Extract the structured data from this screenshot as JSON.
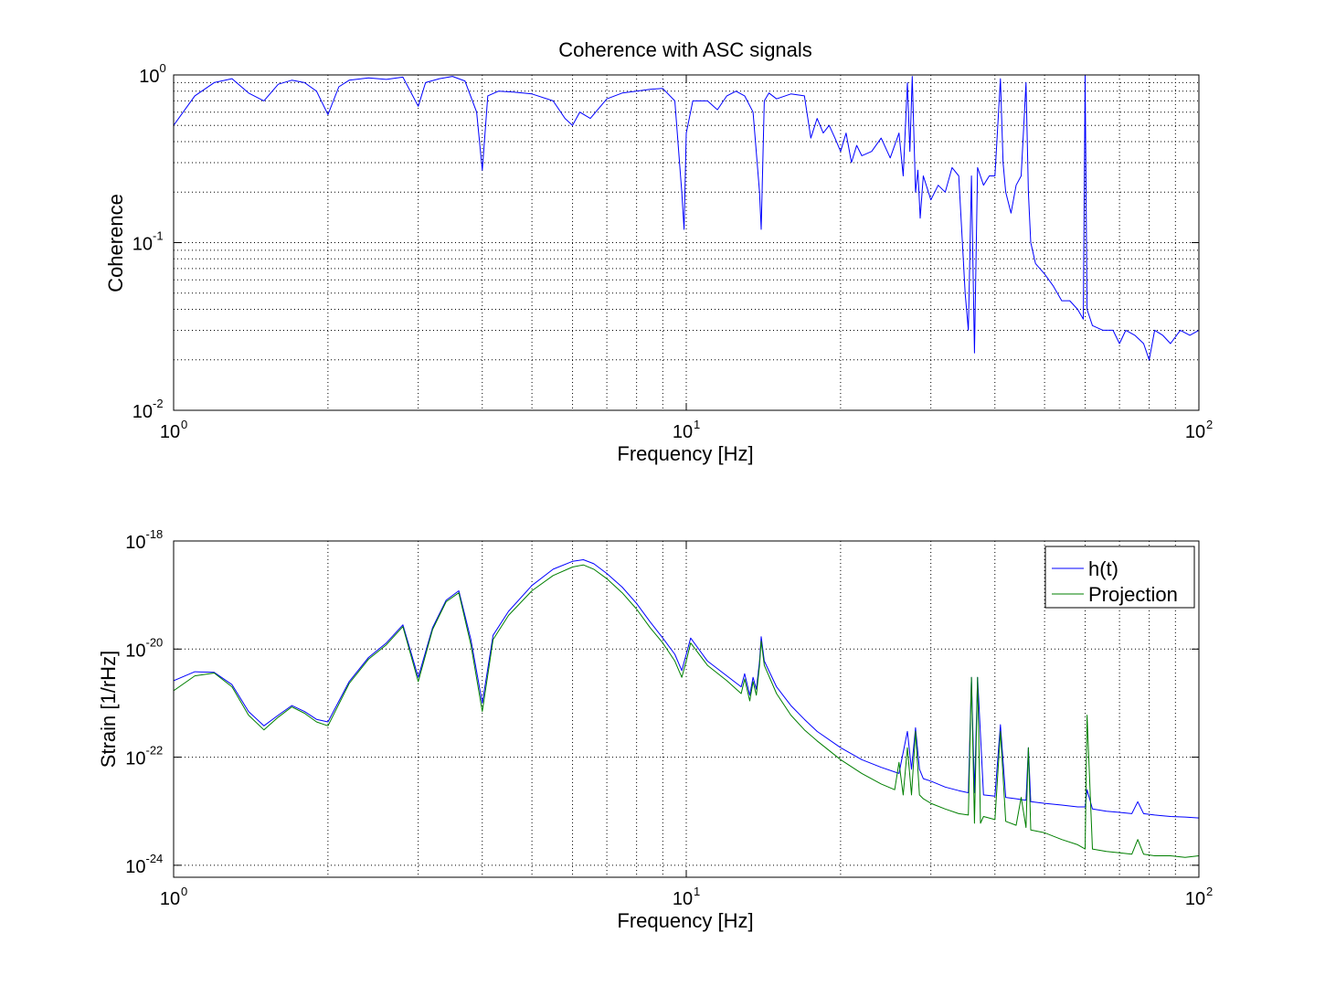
{
  "chart_data": [
    {
      "type": "line",
      "title": "Coherence with ASC signals",
      "xlabel": "Frequency [Hz]",
      "ylabel": "Coherence",
      "xscale": "log",
      "yscale": "log",
      "xlim": [
        1,
        100
      ],
      "ylim": [
        0.01,
        1
      ],
      "x_ticks": [
        {
          "base": "10",
          "exp": "0"
        },
        {
          "base": "10",
          "exp": "1"
        },
        {
          "base": "10",
          "exp": "2"
        }
      ],
      "y_ticks": [
        {
          "base": "10",
          "exp": "0"
        },
        {
          "base": "10",
          "exp": "-1"
        },
        {
          "base": "10",
          "exp": "-2"
        }
      ],
      "grid": true,
      "colors": {
        "series": "#0000ff"
      },
      "series": [
        {
          "x": [
            1.0,
            1.1,
            1.2,
            1.3,
            1.4,
            1.5,
            1.6,
            1.7,
            1.8,
            1.9,
            2.0,
            2.1,
            2.2,
            2.4,
            2.6,
            2.8,
            3.0,
            3.1,
            3.3,
            3.5,
            3.7,
            3.9,
            4.0,
            4.1,
            4.3,
            4.6,
            5.0,
            5.5,
            5.8,
            6.0,
            6.2,
            6.5,
            7.0,
            7.5,
            8.0,
            8.5,
            9.0,
            9.5,
            9.8,
            9.9,
            10.0,
            10.3,
            11.0,
            11.5,
            12.0,
            12.5,
            13.0,
            13.5,
            13.9,
            14.0,
            14.2,
            14.5,
            15.0,
            16.0,
            17.0,
            17.5,
            18.0,
            18.5,
            19.0,
            19.5,
            20.0,
            20.5,
            21.0,
            21.5,
            22.0,
            23.0,
            24.0,
            25.0,
            26.0,
            26.5,
            27.0,
            27.3,
            27.6,
            28.0,
            28.3,
            28.6,
            29.0,
            30.0,
            31.0,
            32.0,
            33.0,
            34.0,
            35.0,
            35.5,
            36.0,
            36.5,
            37.0,
            38.0,
            39.0,
            40.0,
            41.0,
            41.5,
            42.0,
            43.0,
            44.0,
            45.0,
            46.0,
            46.5,
            47.0,
            48.0,
            50.0,
            52.0,
            54.0,
            56.0,
            58.0,
            59.5,
            60.0,
            60.5,
            62.0,
            65.0,
            68.0,
            70.0,
            72.0,
            75.0,
            78.0,
            80.0,
            82.0,
            85.0,
            88.0,
            92.0,
            96.0,
            100.0
          ],
          "values": [
            0.5,
            0.75,
            0.9,
            0.95,
            0.78,
            0.7,
            0.88,
            0.93,
            0.9,
            0.8,
            0.58,
            0.85,
            0.93,
            0.96,
            0.94,
            0.97,
            0.65,
            0.9,
            0.95,
            0.98,
            0.92,
            0.6,
            0.27,
            0.75,
            0.8,
            0.79,
            0.77,
            0.7,
            0.55,
            0.5,
            0.6,
            0.55,
            0.72,
            0.78,
            0.8,
            0.82,
            0.83,
            0.7,
            0.2,
            0.12,
            0.45,
            0.7,
            0.7,
            0.62,
            0.75,
            0.8,
            0.75,
            0.6,
            0.2,
            0.12,
            0.7,
            0.78,
            0.72,
            0.77,
            0.75,
            0.42,
            0.55,
            0.45,
            0.5,
            0.42,
            0.35,
            0.45,
            0.3,
            0.38,
            0.33,
            0.35,
            0.42,
            0.32,
            0.45,
            0.25,
            0.9,
            0.35,
            0.98,
            0.2,
            0.27,
            0.14,
            0.25,
            0.18,
            0.22,
            0.2,
            0.28,
            0.25,
            0.05,
            0.03,
            0.25,
            0.022,
            0.28,
            0.22,
            0.25,
            0.25,
            0.95,
            0.3,
            0.2,
            0.15,
            0.22,
            0.25,
            0.9,
            0.2,
            0.1,
            0.075,
            0.065,
            0.055,
            0.045,
            0.045,
            0.04,
            0.035,
            0.99,
            0.04,
            0.032,
            0.03,
            0.03,
            0.025,
            0.03,
            0.028,
            0.025,
            0.02,
            0.03,
            0.028,
            0.025,
            0.03,
            0.028,
            0.03
          ]
        }
      ]
    },
    {
      "type": "line",
      "title": "",
      "xlabel": "Frequency [Hz]",
      "ylabel": "Strain [1/rHz]",
      "xscale": "log",
      "yscale": "log",
      "xlim": [
        1,
        100
      ],
      "ylim": [
        6e-25,
        1e-18
      ],
      "x_ticks": [
        {
          "base": "10",
          "exp": "0"
        },
        {
          "base": "10",
          "exp": "1"
        },
        {
          "base": "10",
          "exp": "2"
        }
      ],
      "y_ticks": [
        {
          "base": "10",
          "exp": "-18"
        },
        {
          "base": "10",
          "exp": "-20"
        },
        {
          "base": "10",
          "exp": "-22"
        },
        {
          "base": "10",
          "exp": "-24"
        }
      ],
      "grid": true,
      "legend_position": "top-right",
      "series": [
        {
          "name": "h(t)",
          "color": "#0000ff",
          "x": [
            1.0,
            1.1,
            1.2,
            1.3,
            1.4,
            1.5,
            1.6,
            1.7,
            1.8,
            1.9,
            2.0,
            2.2,
            2.4,
            2.6,
            2.8,
            3.0,
            3.2,
            3.4,
            3.6,
            3.8,
            4.0,
            4.2,
            4.5,
            5.0,
            5.5,
            6.0,
            6.3,
            6.6,
            7.0,
            7.5,
            8.0,
            8.5,
            9.0,
            9.5,
            9.8,
            10.0,
            10.2,
            11.0,
            12.0,
            12.8,
            13.0,
            13.3,
            13.5,
            13.7,
            13.9,
            14.0,
            14.2,
            15.0,
            16.0,
            17.0,
            18.0,
            20.0,
            22.0,
            24.0,
            26.0,
            27.0,
            27.5,
            28.0,
            28.5,
            29.0,
            30.0,
            32.0,
            34.0,
            35.5,
            36.0,
            36.5,
            37.0,
            38.0,
            40.0,
            41.0,
            42.0,
            44.0,
            46.0,
            46.5,
            47.0,
            50.0,
            54.0,
            58.0,
            60.0,
            60.5,
            62.0,
            66.0,
            70.0,
            74.0,
            76.0,
            78.0,
            82.0,
            88.0,
            94.0,
            100.0
          ],
          "values": [
            2.6e-21,
            3.8e-21,
            3.7e-21,
            2.2e-21,
            7e-22,
            3.8e-22,
            6e-22,
            9e-22,
            7e-22,
            5e-22,
            4.5e-22,
            2.5e-21,
            7e-21,
            1.3e-20,
            2.8e-20,
            3e-21,
            2.5e-20,
            8e-20,
            1.2e-19,
            1.5e-20,
            1e-21,
            1.8e-20,
            5e-20,
            1.5e-19,
            3e-19,
            4.2e-19,
            4.5e-19,
            3.8e-19,
            2.5e-19,
            1.4e-19,
            7e-20,
            3.2e-20,
            1.6e-20,
            8e-21,
            4e-21,
            8e-21,
            1.6e-20,
            6e-21,
            3.2e-21,
            2e-21,
            3.5e-21,
            1.4e-21,
            3e-21,
            1.8e-21,
            6e-21,
            1.7e-20,
            6e-21,
            2e-21,
            9e-22,
            5e-22,
            3e-22,
            1.5e-22,
            9e-23,
            6.5e-23,
            5e-23,
            3e-22,
            6e-23,
            3.5e-22,
            6e-23,
            4e-23,
            3.6e-23,
            2.8e-23,
            2.4e-23,
            2.2e-23,
            3e-21,
            2.2e-23,
            3e-21,
            2e-23,
            1.9e-23,
            4e-22,
            1.8e-23,
            1.7e-23,
            1.6e-23,
            1.5e-22,
            1.5e-23,
            1.4e-23,
            1.3e-23,
            1.2e-23,
            1.2e-23,
            2.5e-23,
            1.1e-23,
            1e-23,
            9.5e-24,
            9e-24,
            1.5e-23,
            9e-24,
            8.5e-24,
            8e-24,
            7.8e-24,
            7.5e-24
          ]
        },
        {
          "name": "Projection",
          "color": "#007f00",
          "x": [
            1.0,
            1.1,
            1.2,
            1.3,
            1.4,
            1.5,
            1.6,
            1.7,
            1.8,
            1.9,
            2.0,
            2.2,
            2.4,
            2.6,
            2.8,
            3.0,
            3.2,
            3.4,
            3.6,
            3.8,
            4.0,
            4.2,
            4.5,
            5.0,
            5.5,
            6.0,
            6.3,
            6.6,
            7.0,
            7.5,
            8.0,
            8.5,
            9.0,
            9.5,
            9.8,
            10.0,
            10.2,
            11.0,
            12.0,
            12.8,
            13.0,
            13.3,
            13.5,
            13.7,
            13.9,
            14.0,
            14.2,
            15.0,
            16.0,
            17.0,
            18.0,
            20.0,
            22.0,
            24.0,
            25.5,
            26.0,
            26.5,
            27.0,
            27.5,
            28.0,
            28.5,
            29.0,
            30.0,
            32.0,
            34.0,
            35.5,
            36.0,
            36.5,
            37.0,
            37.5,
            38.0,
            40.0,
            41.0,
            42.0,
            44.0,
            45.0,
            46.0,
            46.5,
            47.0,
            50.0,
            54.0,
            58.0,
            60.0,
            60.5,
            62.0,
            66.0,
            70.0,
            74.0,
            76.0,
            78.0,
            82.0,
            88.0,
            94.0,
            100.0
          ],
          "values": [
            1.7e-21,
            3.2e-21,
            3.6e-21,
            2e-21,
            6e-22,
            3.2e-22,
            5.5e-22,
            8.5e-22,
            6.5e-22,
            4.5e-22,
            3.8e-22,
            2.3e-21,
            6.5e-21,
            1.2e-20,
            2.6e-20,
            2.5e-21,
            2.3e-20,
            7.5e-20,
            1.1e-19,
            1.2e-20,
            7e-22,
            1.5e-20,
            4.2e-20,
            1.2e-19,
            2.3e-19,
            3.3e-19,
            3.6e-19,
            3e-19,
            2e-19,
            1.1e-19,
            5.5e-20,
            2.5e-20,
            1.3e-20,
            6e-21,
            3e-21,
            6e-21,
            1.3e-20,
            5e-21,
            2.6e-21,
            1.5e-21,
            2.8e-21,
            1.1e-21,
            2.5e-21,
            1.4e-21,
            5e-21,
            1.4e-20,
            5e-21,
            1.5e-21,
            6e-22,
            3.2e-22,
            2e-22,
            9e-23,
            5e-23,
            3.2e-23,
            2.5e-23,
            8e-23,
            2e-23,
            1.5e-22,
            2e-23,
            3e-22,
            2e-23,
            1.7e-23,
            1.4e-23,
            1.1e-23,
            9e-24,
            8.5e-24,
            3e-21,
            6e-24,
            3e-21,
            6e-24,
            8e-24,
            7e-24,
            3e-22,
            6.5e-24,
            5.5e-24,
            1.8e-23,
            5e-24,
            1.5e-22,
            4.5e-24,
            4e-24,
            3e-24,
            2.4e-24,
            2e-24,
            6e-22,
            2e-24,
            1.8e-24,
            1.7e-24,
            1.6e-24,
            3e-24,
            1.6e-24,
            1.5e-24,
            1.5e-24,
            1.4e-24,
            1.5e-24
          ]
        }
      ]
    }
  ]
}
